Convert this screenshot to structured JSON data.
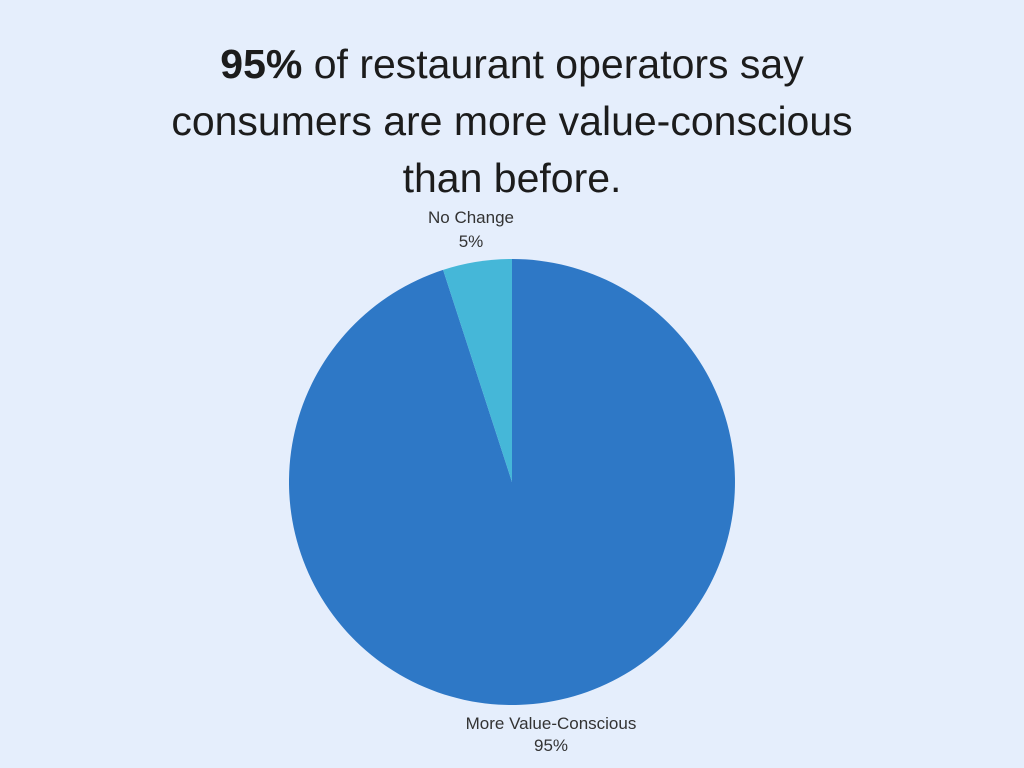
{
  "title": {
    "bold": "95%",
    "line1_rest": " of restaurant operators say",
    "line2": "consumers are more value-conscious",
    "line3": "than before."
  },
  "chart_data": {
    "type": "pie",
    "title": "95% of restaurant operators say consumers are more value-conscious than before.",
    "slices": [
      {
        "label": "More Value-Conscious",
        "value": 95,
        "pct_label": "95%",
        "color": "#2e78c6"
      },
      {
        "label": "No Change",
        "value": 5,
        "pct_label": "5%",
        "color": "#45b7d8"
      }
    ],
    "start_angle_deg": 0,
    "direction": "clockwise",
    "labels_outside": true,
    "legend": "none"
  },
  "colors": {
    "background": "#e5eefc",
    "title_text": "#1c1c1c",
    "label_text": "#333333"
  }
}
